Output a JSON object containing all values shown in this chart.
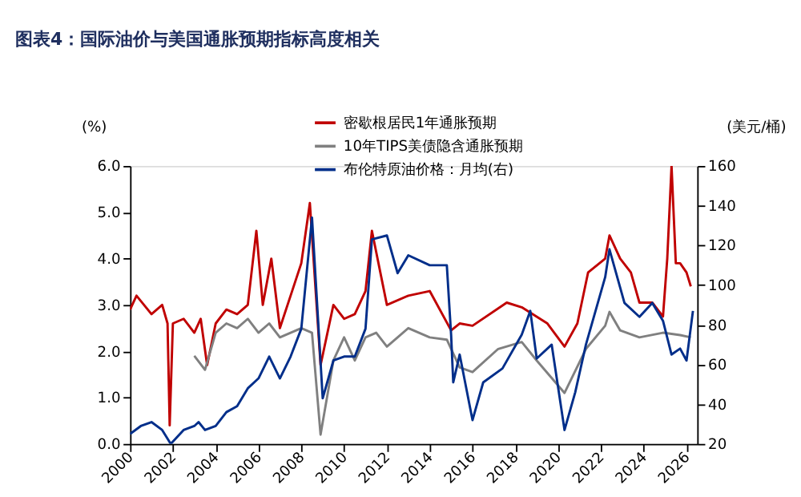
{
  "chart_data": {
    "type": "line",
    "title": "图表4：国际油价与美国通胀预期指标高度相关",
    "ylabel": "(%)",
    "y2label": "(美元/桶)",
    "xlim": [
      2000,
      2026.5
    ],
    "xticks": [
      2000,
      2002,
      2004,
      2006,
      2008,
      2010,
      2012,
      2014,
      2016,
      2018,
      2020,
      2022,
      2024,
      2026
    ],
    "ylim": [
      0,
      6
    ],
    "yticks": [
      {
        "value": 0,
        "label": "0.0"
      },
      {
        "value": 1,
        "label": "1.0"
      },
      {
        "value": 2,
        "label": "2.0"
      },
      {
        "value": 3,
        "label": "3.0"
      },
      {
        "value": 4,
        "label": "4.0"
      },
      {
        "value": 5,
        "label": "5.0"
      },
      {
        "value": 6,
        "label": "6.0"
      }
    ],
    "y2lim": [
      20,
      160
    ],
    "y2ticks": [
      20,
      40,
      60,
      80,
      100,
      120,
      140,
      160
    ],
    "grid": false,
    "legend": "top",
    "marker": "none",
    "line_style": "solid",
    "series": [
      {
        "name": "密歇根居民1年通胀预期",
        "color": "#c00000",
        "x": [
          2000,
          2000.3,
          2001,
          2001.5,
          2001.75,
          2001.85,
          2002,
          2002.5,
          2003,
          2003.3,
          2003.6,
          2004,
          2004.5,
          2005,
          2005.5,
          2005.9,
          2006.2,
          2006.6,
          2007,
          2007.5,
          2008,
          2008.4,
          2008.9,
          2009.5,
          2010,
          2010.5,
          2011,
          2011.3,
          2012,
          2013,
          2014,
          2015,
          2015.4,
          2016,
          2017.6,
          2018.3,
          2019.5,
          2020.3,
          2020.9,
          2021.4,
          2022.2,
          2022.4,
          2022.9,
          2023.4,
          2023.8,
          2024.4,
          2024.9,
          2025.1,
          2025.3,
          2025.5,
          2025.7,
          2026,
          2026.2
        ],
        "values": [
          2.9,
          3.2,
          2.8,
          3.0,
          2.6,
          0.4,
          2.6,
          2.7,
          2.4,
          2.7,
          1.7,
          2.6,
          2.9,
          2.8,
          3.0,
          4.6,
          3.0,
          4.0,
          2.5,
          3.2,
          3.9,
          5.2,
          1.7,
          3.0,
          2.7,
          2.8,
          3.3,
          4.6,
          3.0,
          3.2,
          3.3,
          2.45,
          2.6,
          2.55,
          3.05,
          2.95,
          2.6,
          2.1,
          2.6,
          3.7,
          4.0,
          4.5,
          4.0,
          3.7,
          3.05,
          3.05,
          2.75,
          4.0,
          6.0,
          3.9,
          3.9,
          3.7,
          3.4
        ]
      },
      {
        "name": "10年TIPS美债隐含通胀预期",
        "color": "#808080",
        "x": [
          2003,
          2003.5,
          2004,
          2004.5,
          2005,
          2005.5,
          2006,
          2006.5,
          2007,
          2007.5,
          2008,
          2008.5,
          2008.9,
          2009.5,
          2010,
          2010.5,
          2011,
          2011.5,
          2012,
          2012.5,
          2013,
          2014,
          2014.8,
          2015.4,
          2016,
          2017.2,
          2018.3,
          2019,
          2020.3,
          2021.3,
          2022.2,
          2022.4,
          2022.9,
          2023.8,
          2024.9,
          2025.7,
          2026.2
        ],
        "values": [
          1.9,
          1.6,
          2.4,
          2.6,
          2.5,
          2.7,
          2.4,
          2.6,
          2.3,
          2.4,
          2.5,
          2.4,
          0.2,
          1.8,
          2.3,
          1.8,
          2.3,
          2.4,
          2.1,
          2.3,
          2.5,
          2.3,
          2.25,
          1.65,
          1.55,
          2.05,
          2.2,
          1.8,
          1.1,
          2.05,
          2.55,
          2.85,
          2.45,
          2.3,
          2.4,
          2.35,
          2.3
        ]
      },
      {
        "name": "布伦特原油价格：月均(右)",
        "color": "#002e8a",
        "axis": "y2",
        "x": [
          2000,
          2000.5,
          2001,
          2001.5,
          2001.9,
          2002.5,
          2003,
          2003.2,
          2003.5,
          2004,
          2004.5,
          2005,
          2005.5,
          2006,
          2006.5,
          2007,
          2007.5,
          2008,
          2008.5,
          2009,
          2009.5,
          2010,
          2010.5,
          2011,
          2011.3,
          2012,
          2012.5,
          2013,
          2014,
          2014.8,
          2015,
          2015.1,
          2015.4,
          2016,
          2016.5,
          2017.4,
          2018.3,
          2018.7,
          2019,
          2019.7,
          2020.3,
          2020.8,
          2021.3,
          2022.2,
          2022.4,
          2023.1,
          2023.8,
          2024.4,
          2024.9,
          2025.3,
          2025.7,
          2026,
          2026.3
        ],
        "values": [
          25,
          29,
          31,
          27,
          20,
          27,
          29,
          31,
          27,
          29,
          36,
          39,
          48,
          53,
          64,
          53,
          64,
          78,
          134,
          43,
          62,
          64,
          64,
          78,
          123,
          125,
          106,
          115,
          110,
          110,
          75,
          51,
          65,
          32,
          51,
          58,
          75,
          87,
          63,
          70,
          27,
          46,
          70,
          104,
          118,
          91,
          84,
          91,
          82,
          65,
          68,
          62,
          87
        ]
      }
    ]
  }
}
